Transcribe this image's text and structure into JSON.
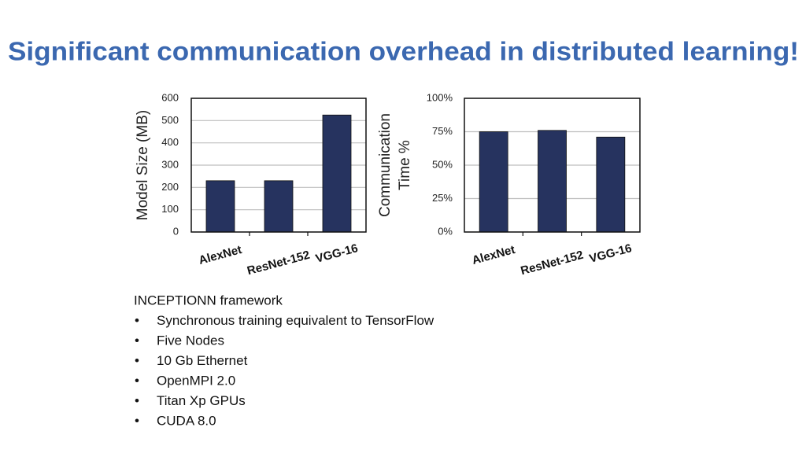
{
  "header": {
    "title": "Significant communication overhead in distributed learning!"
  },
  "chart_data": [
    {
      "type": "bar",
      "ylabel": [
        "Model Size (MB)"
      ],
      "categories": [
        "AlexNet",
        "ResNet-152",
        "VGG-16"
      ],
      "values": [
        230,
        230,
        525
      ],
      "color": "#26335f",
      "ylim": [
        0,
        600
      ],
      "yticks": [
        0,
        100,
        200,
        300,
        400,
        500,
        600
      ],
      "grid": true
    },
    {
      "type": "bar",
      "ylabel": [
        "Communication",
        "Time %"
      ],
      "categories": [
        "AlexNet",
        "ResNet-152",
        "VGG-16"
      ],
      "values": [
        75,
        76,
        71
      ],
      "color": "#26335f",
      "ylim": [
        0,
        100
      ],
      "yticks": [
        {
          "value": 0,
          "label": "0%"
        },
        {
          "value": 25,
          "label": "25%"
        },
        {
          "value": 50,
          "label": "50%"
        },
        {
          "value": 75,
          "label": "75%"
        },
        {
          "value": 100,
          "label": "100%"
        }
      ],
      "grid": true
    }
  ],
  "body": {
    "heading": "INCEPTIONN framework",
    "bullets": [
      "Synchronous training equivalent to TensorFlow",
      "Five Nodes",
      "10 Gb Ethernet",
      "OpenMPI 2.0",
      "Titan Xp GPUs",
      "CUDA 8.0"
    ]
  }
}
